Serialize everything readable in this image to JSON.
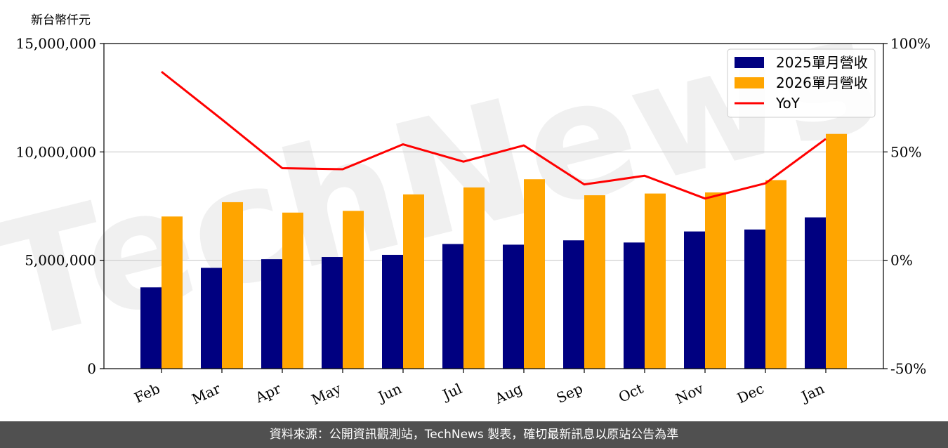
{
  "chart_data": {
    "type": "bar",
    "unit_label": "新台幣仟元",
    "categories": [
      "Feb",
      "Mar",
      "Apr",
      "May",
      "Jun",
      "Jul",
      "Aug",
      "Sep",
      "Oct",
      "Nov",
      "Dec",
      "Jan"
    ],
    "series": [
      {
        "name": "2025單月營收",
        "type": "bar",
        "color": "#000080",
        "values": [
          3750000,
          4650000,
          5050000,
          5150000,
          5250000,
          5750000,
          5720000,
          5920000,
          5820000,
          6330000,
          6420000,
          6980000
        ]
      },
      {
        "name": "2026單月營收",
        "type": "bar",
        "color": "#FFA500",
        "values": [
          7020000,
          7680000,
          7200000,
          7280000,
          8040000,
          8360000,
          8740000,
          8000000,
          8080000,
          8130000,
          8700000,
          10830000
        ]
      },
      {
        "name": "YoY",
        "type": "line",
        "axis": "right",
        "color": "#FF0000",
        "values": [
          87,
          65,
          42.5,
          42,
          53.5,
          45.5,
          53,
          35,
          39,
          28.5,
          35.5,
          56
        ]
      }
    ],
    "y_left": {
      "min": 0,
      "max": 15000000,
      "ticks": [
        "0",
        "5,000,000",
        "10,000,000",
        "15,000,000"
      ],
      "tick_values": [
        0,
        5000000,
        10000000,
        15000000
      ]
    },
    "y_right": {
      "min": -50,
      "max": 100,
      "ticks": [
        "-50%",
        "0%",
        "50%",
        "100%"
      ],
      "tick_values": [
        -50,
        0,
        50,
        100
      ]
    },
    "grid": "horizontal",
    "legend": "top-right"
  },
  "footer": {
    "text": "資料來源：公開資訊觀測站，TechNews 製表，確切最新訊息以原站公告為準"
  },
  "watermark": {
    "text": "TechNews"
  }
}
